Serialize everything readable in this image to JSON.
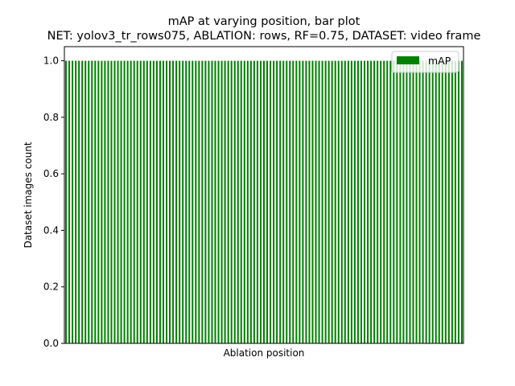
{
  "chart_data": {
    "type": "bar",
    "title": "mAP at varying position, bar plot",
    "subtitle": "NET: yolov3_tr_rows075, ABLATION: rows, RF=0.75, DATASET: video frame",
    "xlabel": "Ablation position",
    "ylabel": "Dataset images count",
    "ylim": [
      0,
      1.05
    ],
    "yticks": [
      "0.0",
      "0.2",
      "0.4",
      "0.6",
      "0.8",
      "1.0"
    ],
    "ytick_values": [
      0,
      0.2,
      0.4,
      0.6,
      0.8,
      1.0
    ],
    "grid": false,
    "legend_placement": "top-right",
    "bar_color": "#008000",
    "series": [
      {
        "name": "mAP",
        "values": [
          1,
          1,
          1,
          1,
          1,
          1,
          1,
          1,
          1,
          1,
          1,
          1,
          1,
          1,
          1,
          1,
          1,
          1,
          1,
          1,
          1,
          1,
          1,
          1,
          1,
          1,
          1,
          1,
          1,
          1,
          1,
          1,
          1,
          1,
          1,
          1,
          1,
          1,
          1,
          1,
          1,
          1,
          1,
          1,
          1,
          1,
          1,
          1,
          1,
          1,
          1,
          1,
          1,
          1,
          1,
          1,
          1,
          1,
          1,
          1,
          1,
          1,
          1,
          1,
          1,
          1,
          1,
          1,
          1,
          1,
          1,
          1,
          1,
          1,
          1,
          1,
          1,
          1,
          1,
          1,
          1,
          1,
          1,
          1,
          1,
          1,
          1,
          1,
          1,
          1,
          1,
          1,
          1,
          1,
          1,
          1,
          1,
          1,
          1,
          1,
          1,
          1,
          1,
          1,
          1,
          1,
          1,
          1,
          1,
          1,
          1,
          1,
          1,
          1,
          1,
          1,
          1,
          1,
          1,
          1,
          1,
          1,
          1
        ]
      }
    ]
  }
}
